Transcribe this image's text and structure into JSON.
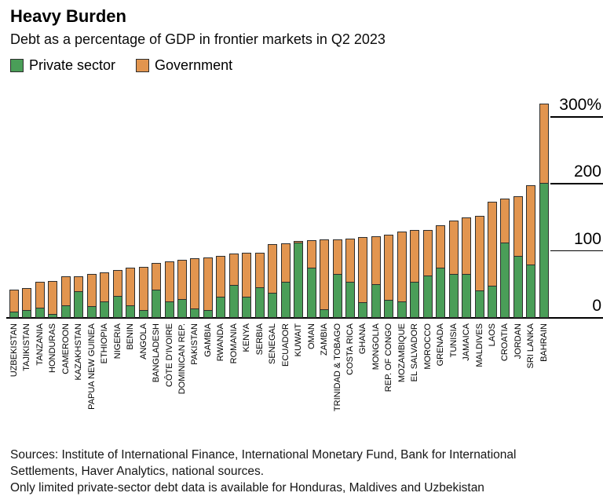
{
  "header": {
    "title": "Heavy Burden",
    "subtitle": "Debt as a percentage of GDP in frontier markets in Q2 2023"
  },
  "chart_data": {
    "type": "bar",
    "stacked": true,
    "title": "Heavy Burden",
    "subtitle": "Debt as a percentage of GDP in frontier markets in Q2 2023",
    "unit": "% of GDP",
    "legend_position": "top-left",
    "ylim": [
      0,
      330
    ],
    "yticks": [
      0,
      100,
      200,
      300
    ],
    "ytick_labels": [
      "0",
      "100",
      "200",
      "300%"
    ],
    "categories": [
      "UZBEKISTAN",
      "TAJIKISTAN",
      "TANZANIA",
      "HONDURAS",
      "CAMEROON",
      "KAZAKHSTAN",
      "PAPUA NEW GUINEA",
      "ETHIOPIA",
      "NIGERIA",
      "BENIN",
      "ANGOLA",
      "BANGLADESH",
      "CÔTE D'IVOIRE",
      "DOMINICAN REP.",
      "PAKISTAN",
      "GAMBIA",
      "RWANDA",
      "ROMANIA",
      "KENYA",
      "SERBIA",
      "SENEGAL",
      "ECUADOR",
      "KUWAIT",
      "OMAN",
      "ZAMBIA",
      "TRINIDAD & TOBAGO",
      "COSTA RICA",
      "GHANA",
      "MONGOLIA",
      "REP. OF CONGO",
      "MOZAMBIQUE",
      "EL SALVADOR",
      "MOROCCO",
      "GRENADA",
      "TUNISIA",
      "JAMAICA",
      "MALDIVES",
      "LAOS",
      "CROATIA",
      "JORDAN",
      "SRI LANKA",
      "BAHRAIN"
    ],
    "series": [
      {
        "name": "Private sector",
        "color": "#4a9e58",
        "values": [
          8,
          10,
          14,
          5,
          17,
          39,
          16,
          24,
          32,
          17,
          10,
          41,
          24,
          27,
          13,
          10,
          30,
          48,
          30,
          45,
          36,
          53,
          111,
          74,
          12,
          65,
          53,
          22,
          49,
          26,
          23,
          53,
          62,
          74,
          65,
          65,
          40,
          47,
          111,
          92,
          79,
          200
        ]
      },
      {
        "name": "Government",
        "color": "#e2954f",
        "values": [
          34,
          34,
          40,
          50,
          44,
          24,
          49,
          44,
          40,
          57,
          66,
          41,
          61,
          60,
          76,
          80,
          62,
          48,
          67,
          53,
          74,
          59,
          3,
          42,
          105,
          53,
          66,
          98,
          73,
          98,
          105,
          78,
          69,
          64,
          81,
          85,
          112,
          127,
          67,
          90,
          120,
          120
        ]
      }
    ]
  },
  "footer": {
    "sources": "Sources: Institute of International Finance, International Monetary Fund, Bank for International Settlements, Haver Analytics, national sources.",
    "note": "Only limited private-sector debt data is available for Honduras, Maldives and Uzbekistan"
  }
}
